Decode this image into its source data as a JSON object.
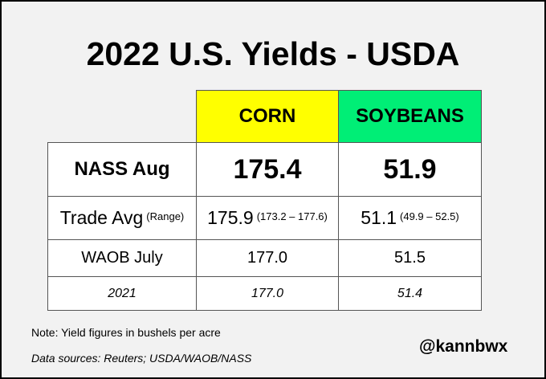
{
  "title": "2022 U.S. Yields - USDA",
  "table": {
    "columns": [
      "CORN",
      "SOYBEANS"
    ],
    "rows": [
      {
        "label": "NASS Aug",
        "cells": [
          {
            "value": "175.4"
          },
          {
            "value": "51.9"
          }
        ]
      },
      {
        "label": "Trade Avg",
        "label_note": "(Range)",
        "cells": [
          {
            "value": "175.9",
            "range": "(173.2 – 177.6)"
          },
          {
            "value": "51.1",
            "range": "(49.9 – 52.5)"
          }
        ]
      },
      {
        "label": "WAOB July",
        "cells": [
          {
            "value": "177.0"
          },
          {
            "value": "51.5"
          }
        ]
      },
      {
        "label": "2021",
        "cells": [
          {
            "value": "177.0"
          },
          {
            "value": "51.4"
          }
        ]
      }
    ]
  },
  "note": "Note: Yield figures in bushels per acre",
  "sources": "Data sources: Reuters; USDA/WAOB/NASS",
  "handle": "@kannbwx"
}
